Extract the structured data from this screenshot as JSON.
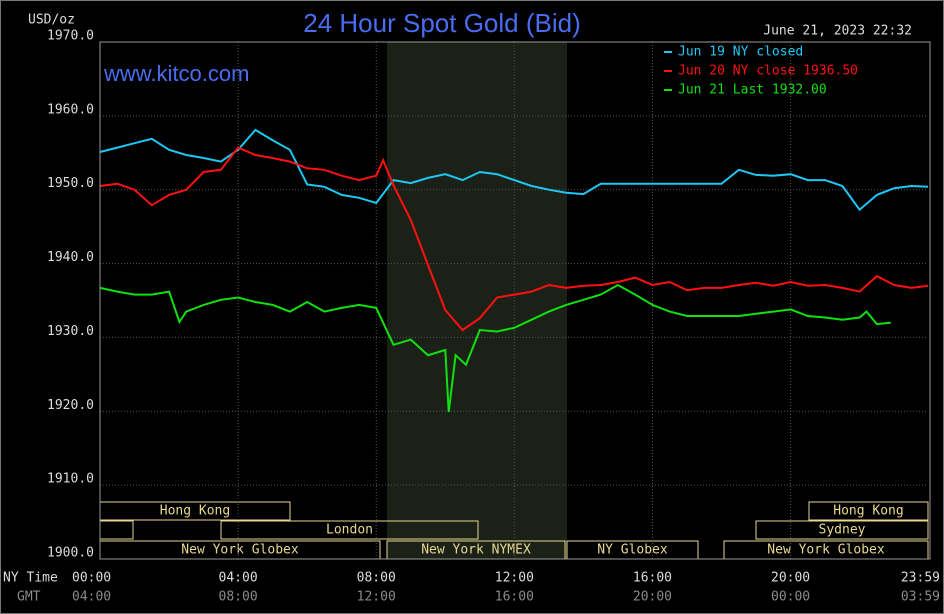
{
  "chart_data": {
    "type": "line",
    "title": "24 Hour Spot Gold (Bid)",
    "timestamp": "June 21, 2023 22:32",
    "watermark": "www.kitco.com",
    "y_label": "USD/oz",
    "x_label": "NY Time",
    "x2_label": "GMT",
    "xlim": [
      0,
      23.98
    ],
    "xticks": [
      {
        "value": 0,
        "label": "00:00"
      },
      {
        "value": 4,
        "label": "04:00"
      },
      {
        "value": 8,
        "label": "08:00"
      },
      {
        "value": 12,
        "label": "12:00"
      },
      {
        "value": 16,
        "label": "16:00"
      },
      {
        "value": 20,
        "label": "20:00"
      },
      {
        "value": 23.98,
        "label": "23:59"
      }
    ],
    "gmt_tick_labels": [
      "04:00",
      "08:00",
      "12:00",
      "16:00",
      "20:00",
      "00:00",
      "03:59"
    ],
    "ylim": [
      1900,
      1970
    ],
    "yticks": [
      {
        "value": 1900,
        "label": "1900.0"
      },
      {
        "value": 1910,
        "label": "1910.0"
      },
      {
        "value": 1920,
        "label": "1920.0"
      },
      {
        "value": 1930,
        "label": "1930.0"
      },
      {
        "value": 1940,
        "label": "1940.0"
      },
      {
        "value": 1950,
        "label": "1950.0"
      },
      {
        "value": 1960,
        "label": "1960.0"
      },
      {
        "value": 1970,
        "label": "1970.0"
      }
    ],
    "grid": true,
    "sessions": [
      "Hong Kong",
      "London",
      "New York Globex",
      "New York NYMEX",
      "NY Globex",
      "Hong Kong",
      "Sydney",
      "New York Globex"
    ],
    "series": [
      {
        "name": "Jun 19 NY closed",
        "color": "#1ec8f5",
        "x": [
          0,
          0.5,
          1,
          1.5,
          2,
          2.5,
          3,
          3.5,
          4,
          4.5,
          5,
          5.5,
          6,
          6.5,
          7,
          7.5,
          8,
          8.5,
          9,
          9.5,
          10,
          10.5,
          11,
          11.5,
          12,
          12.5,
          13,
          13.5,
          14,
          14.5,
          16,
          18,
          18.5,
          19,
          19.5,
          20,
          20.5,
          21,
          21.5,
          22,
          22.5,
          23,
          23.5,
          23.98
        ],
        "values": [
          1955.1,
          1955.7,
          1956.3,
          1956.9,
          1955.4,
          1954.7,
          1954.3,
          1953.8,
          1955.4,
          1958.1,
          1956.7,
          1955.4,
          1950.7,
          1950.4,
          1949.3,
          1948.9,
          1948.2,
          1951.3,
          1950.9,
          1951.6,
          1952.1,
          1951.3,
          1952.4,
          1952.1,
          1951.3,
          1950.5,
          1950.0,
          1949.6,
          1949.4,
          1950.8,
          1950.8,
          1950.8,
          1952.7,
          1952.0,
          1951.9,
          1952.1,
          1951.3,
          1951.3,
          1950.5,
          1947.3,
          1949.3,
          1950.2,
          1950.5,
          1950.4
        ]
      },
      {
        "name": "Jun 20 NY close 1936.50",
        "color": "#ff1010",
        "x": [
          0,
          0.5,
          1,
          1.5,
          2,
          2.5,
          3,
          3.5,
          4,
          4.5,
          5,
          5.5,
          6,
          6.5,
          7,
          7.5,
          8,
          8.2,
          8.5,
          9,
          9.5,
          10,
          10.5,
          11,
          11.5,
          12,
          12.5,
          13,
          13.5,
          14,
          14.5,
          15,
          15.5,
          16,
          16.5,
          17,
          17.5,
          18,
          18.5,
          19,
          19.5,
          20,
          20.5,
          21,
          21.5,
          22,
          22.5,
          23,
          23.5,
          23.98
        ],
        "values": [
          1950.5,
          1950.8,
          1950.0,
          1947.9,
          1949.3,
          1950.0,
          1952.4,
          1952.7,
          1955.7,
          1954.7,
          1954.3,
          1953.8,
          1952.9,
          1952.7,
          1951.9,
          1951.3,
          1951.9,
          1954.0,
          1950.6,
          1945.9,
          1939.8,
          1933.7,
          1931.0,
          1932.6,
          1935.4,
          1935.8,
          1936.2,
          1937.1,
          1936.7,
          1937.0,
          1937.1,
          1937.5,
          1938.1,
          1937.1,
          1937.5,
          1936.4,
          1936.7,
          1936.7,
          1937.1,
          1937.4,
          1937.0,
          1937.5,
          1937.0,
          1937.1,
          1936.7,
          1936.2,
          1938.3,
          1937.1,
          1936.7,
          1937.0
        ]
      },
      {
        "name": "Jun 21 Last 1932.00",
        "color": "#10e010",
        "x": [
          0,
          0.5,
          1,
          1.5,
          2,
          2.3,
          2.5,
          3,
          3.5,
          4,
          4.5,
          5,
          5.5,
          6,
          6.5,
          7,
          7.5,
          8,
          8.5,
          9,
          9.5,
          10,
          10.1,
          10.3,
          10.6,
          11,
          11.5,
          12,
          12.5,
          13,
          13.5,
          14,
          14.5,
          15,
          15.5,
          16,
          16.5,
          17,
          17.5,
          18,
          18.5,
          19,
          19.5,
          20,
          20.5,
          21,
          21.5,
          22,
          22.2,
          22.5,
          22.9
        ],
        "values": [
          1936.7,
          1936.2,
          1935.8,
          1935.8,
          1936.2,
          1932.1,
          1933.5,
          1934.4,
          1935.1,
          1935.4,
          1934.8,
          1934.4,
          1933.5,
          1934.8,
          1933.5,
          1934.0,
          1934.4,
          1934.0,
          1929.0,
          1929.7,
          1927.6,
          1928.3,
          1919.9,
          1927.6,
          1926.3,
          1931.0,
          1930.8,
          1931.3,
          1932.4,
          1933.5,
          1934.4,
          1935.1,
          1935.8,
          1937.1,
          1935.8,
          1934.4,
          1933.5,
          1932.9,
          1932.9,
          1932.9,
          1932.9,
          1933.2,
          1933.5,
          1933.8,
          1932.9,
          1932.7,
          1932.4,
          1932.7,
          1933.5,
          1931.8,
          1932.0
        ]
      }
    ]
  }
}
